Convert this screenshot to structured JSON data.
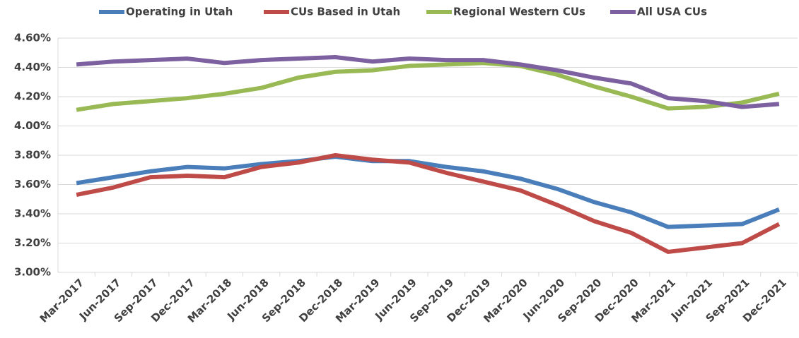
{
  "chart_data": {
    "type": "line",
    "categories": [
      "Mar-2017",
      "Jun-2017",
      "Sep-2017",
      "Dec-2017",
      "Mar-2018",
      "Jun-2018",
      "Sep-2018",
      "Dec-2018",
      "Mar-2019",
      "Jun-2019",
      "Sep-2019",
      "Dec-2019",
      "Mar-2020",
      "Jun-2020",
      "Sep-2020",
      "Dec-2020",
      "Mar-2021",
      "Jun-2021",
      "Sep-2021",
      "Dec-2021"
    ],
    "series": [
      {
        "name": "Operating in Utah",
        "color": "#4a7ebb",
        "values": [
          3.61,
          3.65,
          3.69,
          3.72,
          3.71,
          3.74,
          3.76,
          3.79,
          3.76,
          3.76,
          3.72,
          3.69,
          3.64,
          3.57,
          3.48,
          3.41,
          3.31,
          3.32,
          3.33,
          3.43
        ]
      },
      {
        "name": "CUs Based in Utah",
        "color": "#be4b48",
        "values": [
          3.53,
          3.58,
          3.65,
          3.66,
          3.65,
          3.72,
          3.75,
          3.8,
          3.77,
          3.75,
          3.68,
          3.62,
          3.56,
          3.46,
          3.35,
          3.27,
          3.14,
          3.17,
          3.2,
          3.33
        ]
      },
      {
        "name": "Regional Western CUs",
        "color": "#98b954",
        "values": [
          4.11,
          4.15,
          4.17,
          4.19,
          4.22,
          4.26,
          4.33,
          4.37,
          4.38,
          4.41,
          4.42,
          4.43,
          4.41,
          4.35,
          4.27,
          4.2,
          4.12,
          4.13,
          4.16,
          4.22
        ]
      },
      {
        "name": "All USA CUs",
        "color": "#7d60a0",
        "values": [
          4.42,
          4.44,
          4.45,
          4.46,
          4.43,
          4.45,
          4.46,
          4.47,
          4.44,
          4.46,
          4.45,
          4.45,
          4.42,
          4.38,
          4.33,
          4.29,
          4.19,
          4.17,
          4.13,
          4.15
        ]
      }
    ],
    "ylim": [
      3.0,
      4.6
    ],
    "yticks": [
      {
        "value": 3.0,
        "label": "3.00%"
      },
      {
        "value": 3.2,
        "label": "3.20%"
      },
      {
        "value": 3.4,
        "label": "3.40%"
      },
      {
        "value": 3.6,
        "label": "3.60%"
      },
      {
        "value": 3.8,
        "label": "3.80%"
      },
      {
        "value": 4.0,
        "label": "4.00%"
      },
      {
        "value": 4.2,
        "label": "4.20%"
      },
      {
        "value": 4.4,
        "label": "4.40%"
      },
      {
        "value": 4.6,
        "label": "4.60%"
      }
    ],
    "grid": true,
    "legend": "top"
  }
}
